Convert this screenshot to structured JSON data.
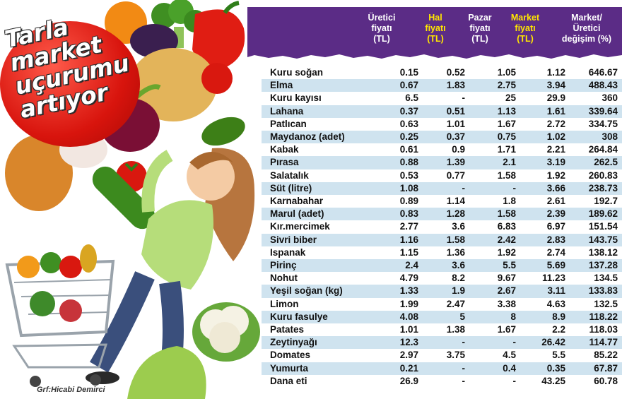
{
  "title_lines": [
    "Tarla",
    "market",
    "uçurumu",
    "artıyor"
  ],
  "credit": "Grf:Hicabi Demirci",
  "columns": [
    {
      "lines": [
        "Üretici",
        "fiyatı",
        "(TL)"
      ],
      "highlight": false
    },
    {
      "lines": [
        "Hal",
        "fiyatı",
        "(TL)"
      ],
      "highlight": true
    },
    {
      "lines": [
        "Pazar",
        "fiyatı",
        "(TL)"
      ],
      "highlight": false
    },
    {
      "lines": [
        "Market",
        "fiyatı",
        "(TL)"
      ],
      "highlight": true
    },
    {
      "lines": [
        "Market/",
        "Üretici",
        "değişim (%)"
      ],
      "highlight": false
    }
  ],
  "colors": {
    "header_bg": "#5b2c86",
    "header_text": "#ffffff",
    "header_highlight": "#ffe600",
    "row_stripe": "#cfe3ef",
    "title_red": "#d8140d"
  },
  "rows": [
    {
      "name": "Kuru soğan",
      "uretici": "0.15",
      "hal": "0.52",
      "pazar": "1.05",
      "market": "1.12",
      "degisim": "646.67"
    },
    {
      "name": "Elma",
      "uretici": "0.67",
      "hal": "1.83",
      "pazar": "2.75",
      "market": "3.94",
      "degisim": "488.43"
    },
    {
      "name": "Kuru kayısı",
      "uretici": "6.5",
      "hal": "-",
      "pazar": "25",
      "market": "29.9",
      "degisim": "360"
    },
    {
      "name": "Lahana",
      "uretici": "0.37",
      "hal": "0.51",
      "pazar": "1.13",
      "market": "1.61",
      "degisim": "339.64"
    },
    {
      "name": "Patlıcan",
      "uretici": "0.63",
      "hal": "1.01",
      "pazar": "1.67",
      "market": "2.72",
      "degisim": "334.75"
    },
    {
      "name": "Maydanoz (adet)",
      "uretici": "0.25",
      "hal": "0.37",
      "pazar": "0.75",
      "market": "1.02",
      "degisim": "308"
    },
    {
      "name": "Kabak",
      "uretici": "0.61",
      "hal": "0.9",
      "pazar": "1.71",
      "market": "2.21",
      "degisim": "264.84"
    },
    {
      "name": "Pırasa",
      "uretici": "0.88",
      "hal": "1.39",
      "pazar": "2.1",
      "market": "3.19",
      "degisim": "262.5"
    },
    {
      "name": "Salatalık",
      "uretici": "0.53",
      "hal": "0.77",
      "pazar": "1.58",
      "market": "1.92",
      "degisim": "260.83"
    },
    {
      "name": "Süt (litre)",
      "uretici": "1.08",
      "hal": "-",
      "pazar": "-",
      "market": "3.66",
      "degisim": "238.73"
    },
    {
      "name": "Karnabahar",
      "uretici": "0.89",
      "hal": "1.14",
      "pazar": "1.8",
      "market": "2.61",
      "degisim": "192.7"
    },
    {
      "name": "Marul (adet)",
      "uretici": "0.83",
      "hal": "1.28",
      "pazar": "1.58",
      "market": "2.39",
      "degisim": "189.62"
    },
    {
      "name": "Kır.mercimek",
      "uretici": "2.77",
      "hal": "3.6",
      "pazar": "6.83",
      "market": "6.97",
      "degisim": "151.54"
    },
    {
      "name": "Sivri biber",
      "uretici": "1.16",
      "hal": "1.58",
      "pazar": "2.42",
      "market": "2.83",
      "degisim": "143.75"
    },
    {
      "name": "Ispanak",
      "uretici": "1.15",
      "hal": "1.36",
      "pazar": "1.92",
      "market": "2.74",
      "degisim": "138.12"
    },
    {
      "name": "Pirinç",
      "uretici": "2.4",
      "hal": "3.6",
      "pazar": "5.5",
      "market": "5.69",
      "degisim": "137.28"
    },
    {
      "name": "Nohut",
      "uretici": "4.79",
      "hal": "8.2",
      "pazar": "9.67",
      "market": "11.23",
      "degisim": "134.5"
    },
    {
      "name": "Yeşil soğan (kg)",
      "uretici": "1.33",
      "hal": "1.9",
      "pazar": "2.67",
      "market": "3.11",
      "degisim": "133.83"
    },
    {
      "name": "Limon",
      "uretici": "1.99",
      "hal": "2.47",
      "pazar": "3.38",
      "market": "4.63",
      "degisim": "132.5"
    },
    {
      "name": "Kuru fasulye",
      "uretici": "4.08",
      "hal": "5",
      "pazar": "8",
      "market": "8.9",
      "degisim": "118.22"
    },
    {
      "name": "Patates",
      "uretici": "1.01",
      "hal": "1.38",
      "pazar": "1.67",
      "market": "2.2",
      "degisim": "118.03"
    },
    {
      "name": "Zeytinyağı",
      "uretici": "12.3",
      "hal": "-",
      "pazar": "-",
      "market": "26.42",
      "degisim": "114.77"
    },
    {
      "name": "Domates",
      "uretici": "2.97",
      "hal": "3.75",
      "pazar": "4.5",
      "market": "5.5",
      "degisim": "85.22"
    },
    {
      "name": "Yumurta",
      "uretici": "0.21",
      "hal": "-",
      "pazar": "0.4",
      "market": "0.35",
      "degisim": "67.87"
    },
    {
      "name": "Dana eti",
      "uretici": "26.9",
      "hal": "-",
      "pazar": "-",
      "market": "43.25",
      "degisim": "60.78"
    }
  ]
}
